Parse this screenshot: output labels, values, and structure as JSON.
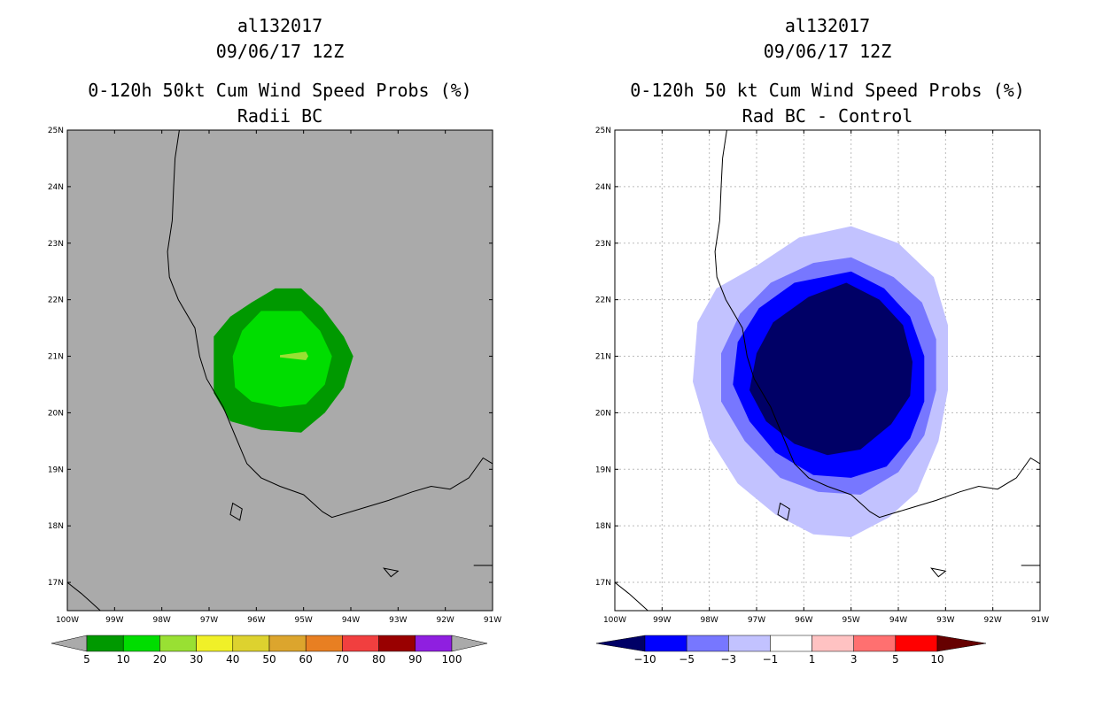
{
  "colors": {
    "land_gray": "#aaaaaa",
    "coast": "#000000",
    "grid": "#bbbbbb"
  },
  "chart_data": [
    {
      "type": "heatmap",
      "id": "left",
      "title_lines": [
        "al132017",
        "09/06/17 12Z",
        "0-120h 50kt Cum Wind Speed Probs (%)",
        "Radii BC"
      ],
      "xlabel": "",
      "ylabel": "",
      "xlim": [
        -100,
        -91
      ],
      "ylim": [
        16.5,
        25
      ],
      "x_ticks": [
        -100,
        -99,
        -98,
        -97,
        -96,
        -95,
        -94,
        -93,
        -92,
        -91
      ],
      "x_tick_labels": [
        "100W",
        "99W",
        "98W",
        "97W",
        "96W",
        "95W",
        "94W",
        "93W",
        "92W",
        "91W"
      ],
      "y_ticks": [
        17,
        18,
        19,
        20,
        21,
        22,
        23,
        24,
        25
      ],
      "y_tick_labels": [
        "17N",
        "18N",
        "19N",
        "20N",
        "21N",
        "22N",
        "23N",
        "24N",
        "25N"
      ],
      "grid": false,
      "background": "#aaaaaa",
      "contours": [
        {
          "level": "5-10",
          "color": "#009900",
          "polygon": [
            [
              -95.6,
              22.2
            ],
            [
              -95.05,
              22.2
            ],
            [
              -94.6,
              21.85
            ],
            [
              -94.15,
              21.35
            ],
            [
              -93.95,
              21.0
            ],
            [
              -94.15,
              20.45
            ],
            [
              -94.55,
              20.0
            ],
            [
              -95.05,
              19.65
            ],
            [
              -95.9,
              19.7
            ],
            [
              -96.55,
              19.85
            ],
            [
              -96.9,
              20.35
            ],
            [
              -96.9,
              21.35
            ],
            [
              -96.55,
              21.7
            ],
            [
              -96.1,
              21.95
            ]
          ]
        },
        {
          "level": "10-20",
          "color": "#00dd00",
          "polygon": [
            [
              -95.9,
              21.8
            ],
            [
              -95.05,
              21.8
            ],
            [
              -94.65,
              21.45
            ],
            [
              -94.4,
              21.0
            ],
            [
              -94.55,
              20.5
            ],
            [
              -94.95,
              20.15
            ],
            [
              -95.5,
              20.1
            ],
            [
              -96.1,
              20.2
            ],
            [
              -96.45,
              20.45
            ],
            [
              -96.5,
              21.0
            ],
            [
              -96.3,
              21.45
            ]
          ]
        },
        {
          "level": "20-30",
          "color": "#99e033",
          "polygon": [
            [
              -95.5,
              21.02
            ],
            [
              -94.95,
              21.08
            ],
            [
              -94.9,
              21.0
            ],
            [
              -94.95,
              20.93
            ],
            [
              -95.5,
              20.98
            ]
          ]
        }
      ],
      "colorbar": {
        "labels": [
          "5",
          "10",
          "20",
          "30",
          "40",
          "50",
          "60",
          "70",
          "80",
          "90",
          "100"
        ],
        "colors": [
          "#009900",
          "#00dd00",
          "#99e033",
          "#f0f028",
          "#ddd22f",
          "#dca52d",
          "#e87f22",
          "#f13f3f",
          "#990000",
          "#8f1fe0"
        ],
        "under_color": "#aaaaaa",
        "over_color": "#aaaaaa"
      }
    },
    {
      "type": "heatmap",
      "id": "right",
      "title_lines": [
        "al132017",
        "09/06/17 12Z",
        "0-120h 50 kt Cum Wind Speed Probs (%)",
        "Rad BC - Control"
      ],
      "xlabel": "",
      "ylabel": "",
      "xlim": [
        -100,
        -91
      ],
      "ylim": [
        16.5,
        25
      ],
      "x_ticks": [
        -100,
        -99,
        -98,
        -97,
        -96,
        -95,
        -94,
        -93,
        -92,
        -91
      ],
      "x_tick_labels": [
        "100W",
        "99W",
        "98W",
        "97W",
        "96W",
        "95W",
        "94W",
        "93W",
        "92W",
        "91W"
      ],
      "y_ticks": [
        17,
        18,
        19,
        20,
        21,
        22,
        23,
        24,
        25
      ],
      "y_tick_labels": [
        "17N",
        "18N",
        "19N",
        "20N",
        "21N",
        "22N",
        "23N",
        "24N",
        "25N"
      ],
      "grid": true,
      "background": "#ffffff",
      "contours": [
        {
          "level": "-3 to -1",
          "color": "#c2c2ff",
          "polygon": [
            [
              -95.0,
              23.3
            ],
            [
              -94.0,
              23.0
            ],
            [
              -93.25,
              22.4
            ],
            [
              -92.95,
              21.55
            ],
            [
              -92.95,
              20.4
            ],
            [
              -93.15,
              19.5
            ],
            [
              -93.6,
              18.6
            ],
            [
              -94.2,
              18.15
            ],
            [
              -95.0,
              17.8
            ],
            [
              -95.8,
              17.85
            ],
            [
              -96.6,
              18.2
            ],
            [
              -97.4,
              18.75
            ],
            [
              -98.0,
              19.55
            ],
            [
              -98.35,
              20.55
            ],
            [
              -98.25,
              21.6
            ],
            [
              -97.85,
              22.2
            ],
            [
              -97.0,
              22.6
            ],
            [
              -96.1,
              23.1
            ]
          ]
        },
        {
          "level": "-5 to -3",
          "color": "#7777ff",
          "polygon": [
            [
              -95.0,
              22.75
            ],
            [
              -94.1,
              22.4
            ],
            [
              -93.5,
              21.95
            ],
            [
              -93.2,
              21.3
            ],
            [
              -93.2,
              20.4
            ],
            [
              -93.45,
              19.6
            ],
            [
              -94.0,
              18.95
            ],
            [
              -94.8,
              18.55
            ],
            [
              -95.7,
              18.6
            ],
            [
              -96.5,
              18.85
            ],
            [
              -97.25,
              19.5
            ],
            [
              -97.75,
              20.2
            ],
            [
              -97.75,
              21.05
            ],
            [
              -97.35,
              21.75
            ],
            [
              -96.7,
              22.3
            ],
            [
              -95.8,
              22.65
            ]
          ]
        },
        {
          "level": "-10 to -5",
          "color": "#0000ff",
          "polygon": [
            [
              -95.0,
              22.5
            ],
            [
              -94.3,
              22.2
            ],
            [
              -93.75,
              21.7
            ],
            [
              -93.45,
              21.0
            ],
            [
              -93.45,
              20.2
            ],
            [
              -93.75,
              19.55
            ],
            [
              -94.25,
              19.05
            ],
            [
              -95.0,
              18.85
            ],
            [
              -95.8,
              18.9
            ],
            [
              -96.6,
              19.3
            ],
            [
              -97.15,
              19.85
            ],
            [
              -97.5,
              20.5
            ],
            [
              -97.4,
              21.25
            ],
            [
              -96.95,
              21.85
            ],
            [
              -96.2,
              22.3
            ]
          ]
        },
        {
          "level": "below -10",
          "color": "#000066",
          "polygon": [
            [
              -95.1,
              22.3
            ],
            [
              -94.4,
              22.0
            ],
            [
              -93.9,
              21.55
            ],
            [
              -93.7,
              20.9
            ],
            [
              -93.75,
              20.3
            ],
            [
              -94.15,
              19.8
            ],
            [
              -94.8,
              19.35
            ],
            [
              -95.5,
              19.25
            ],
            [
              -96.2,
              19.45
            ],
            [
              -96.8,
              19.85
            ],
            [
              -97.15,
              20.4
            ],
            [
              -97.0,
              21.05
            ],
            [
              -96.65,
              21.6
            ],
            [
              -95.9,
              22.05
            ]
          ]
        }
      ],
      "colorbar": {
        "labels": [
          "-10",
          "-5",
          "-3",
          "-1",
          "1",
          "3",
          "5",
          "10"
        ],
        "colors": [
          "#0000ff",
          "#7777ff",
          "#c2c2ff",
          "#ffffff",
          "#ffc2c2",
          "#ff7070",
          "#ff0000"
        ],
        "under_color": "#000066",
        "over_color": "#660000"
      }
    }
  ]
}
